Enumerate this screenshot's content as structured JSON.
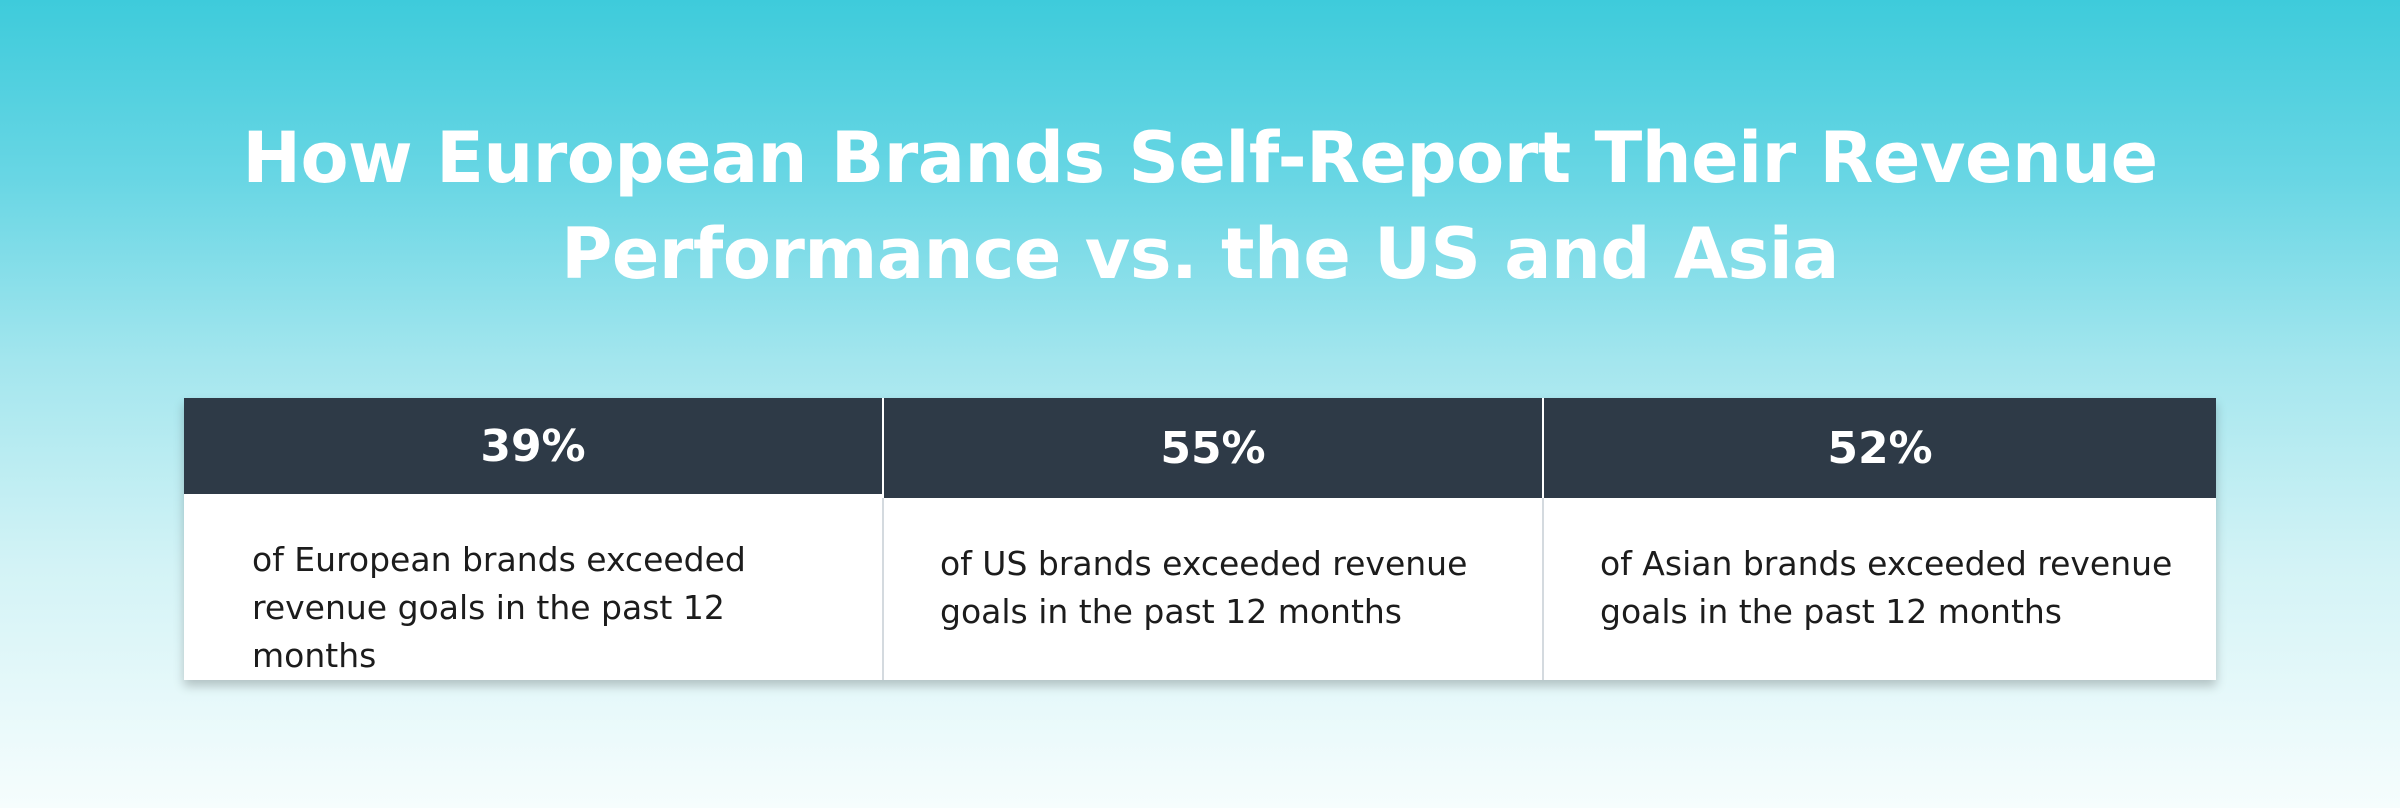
{
  "title": {
    "line1": "How European Brands Self-Report Their Revenue",
    "line2": "Performance vs. the US and Asia"
  },
  "stats": [
    {
      "value": "39%",
      "description": "of European brands exceeded revenue goals in the past 12 months"
    },
    {
      "value": "55%",
      "description": "of US brands exceeded revenue goals in the past 12 months"
    },
    {
      "value": "52%",
      "description": "of Asian brands exceeded revenue goals in the past 12 months"
    }
  ],
  "colors": {
    "header_bg": "#2e3a47",
    "gradient_top": "#3ecbdb",
    "gradient_bottom": "#f6fdfd",
    "text_light": "#ffffff",
    "text_dark": "#1c1c1c"
  }
}
